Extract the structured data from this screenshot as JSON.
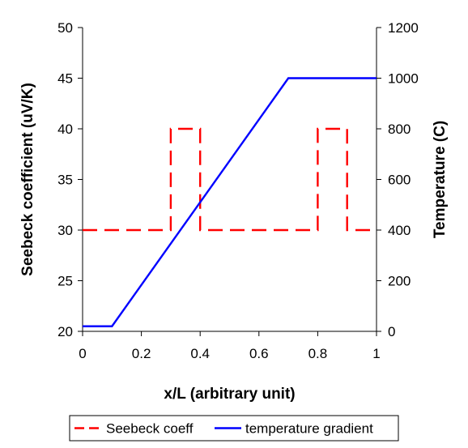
{
  "chart_data": {
    "type": "line",
    "xlabel": "x/L (arbitrary unit)",
    "ylabel": "Seebeck coefficient (uV/K)",
    "y2label": "Temperature (C)",
    "xlim": [
      0,
      1
    ],
    "ylim": [
      20,
      50
    ],
    "y2lim": [
      0,
      1200
    ],
    "x_ticks": [
      0,
      0.2,
      0.4,
      0.6,
      0.8,
      1
    ],
    "x_tick_labels": [
      "0",
      "0.2",
      "0.4",
      "0.6",
      "0.8",
      "1"
    ],
    "y_ticks": [
      20,
      25,
      30,
      35,
      40,
      45,
      50
    ],
    "y_tick_labels": [
      "20",
      "25",
      "30",
      "35",
      "40",
      "45",
      "50"
    ],
    "y2_ticks": [
      0,
      200,
      400,
      600,
      800,
      1000,
      1200
    ],
    "y2_tick_labels": [
      "0",
      "200",
      "400",
      "600",
      "800",
      "1000",
      "1200"
    ],
    "grid": false,
    "legend_position": "bottom",
    "series": [
      {
        "name": "Seebeck coeff",
        "axis": "left",
        "color": "#ff0000",
        "style": "dashed",
        "x": [
          0,
          0.3,
          0.3,
          0.4,
          0.4,
          0.8,
          0.8,
          0.9,
          0.9,
          1
        ],
        "y": [
          30,
          30,
          40,
          40,
          30,
          30,
          40,
          40,
          30,
          30
        ]
      },
      {
        "name": "temperature gradient",
        "axis": "right",
        "color": "#0000ff",
        "style": "solid",
        "x": [
          0,
          0.1,
          0.7,
          1
        ],
        "y": [
          20,
          20,
          1000,
          1000
        ]
      }
    ]
  }
}
